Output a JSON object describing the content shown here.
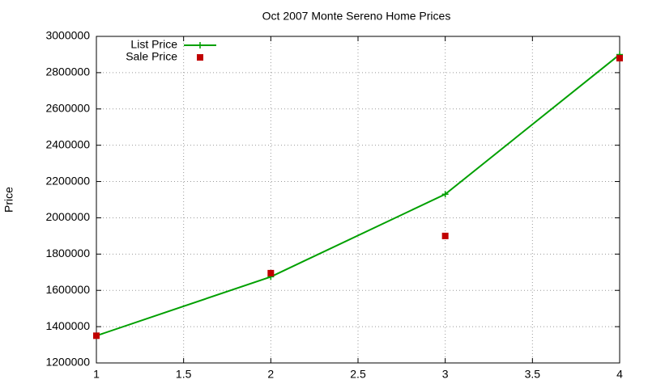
{
  "chart_data": {
    "type": "line",
    "title": "Oct 2007 Monte Sereno Home Prices",
    "y_label": "Price",
    "x": [
      1,
      2,
      3,
      4
    ],
    "series": [
      {
        "name": "List Price",
        "color": "#00a000",
        "line": true,
        "marker": "plus",
        "values": [
          1350000,
          1675000,
          2130000,
          2900000
        ]
      },
      {
        "name": "Sale Price",
        "color": "#c00000",
        "line": false,
        "marker": "square",
        "values": [
          1350000,
          1695000,
          1900000,
          2880000
        ]
      }
    ],
    "xlim": [
      1,
      4
    ],
    "xticks": [
      1,
      1.5,
      2,
      2.5,
      3,
      3.5,
      4
    ],
    "ylim": [
      1200000,
      3000000
    ],
    "yticks": [
      1200000,
      1400000,
      1600000,
      1800000,
      2000000,
      2200000,
      2400000,
      2600000,
      2800000,
      3000000
    ],
    "grid": true,
    "legend": "top-left"
  }
}
